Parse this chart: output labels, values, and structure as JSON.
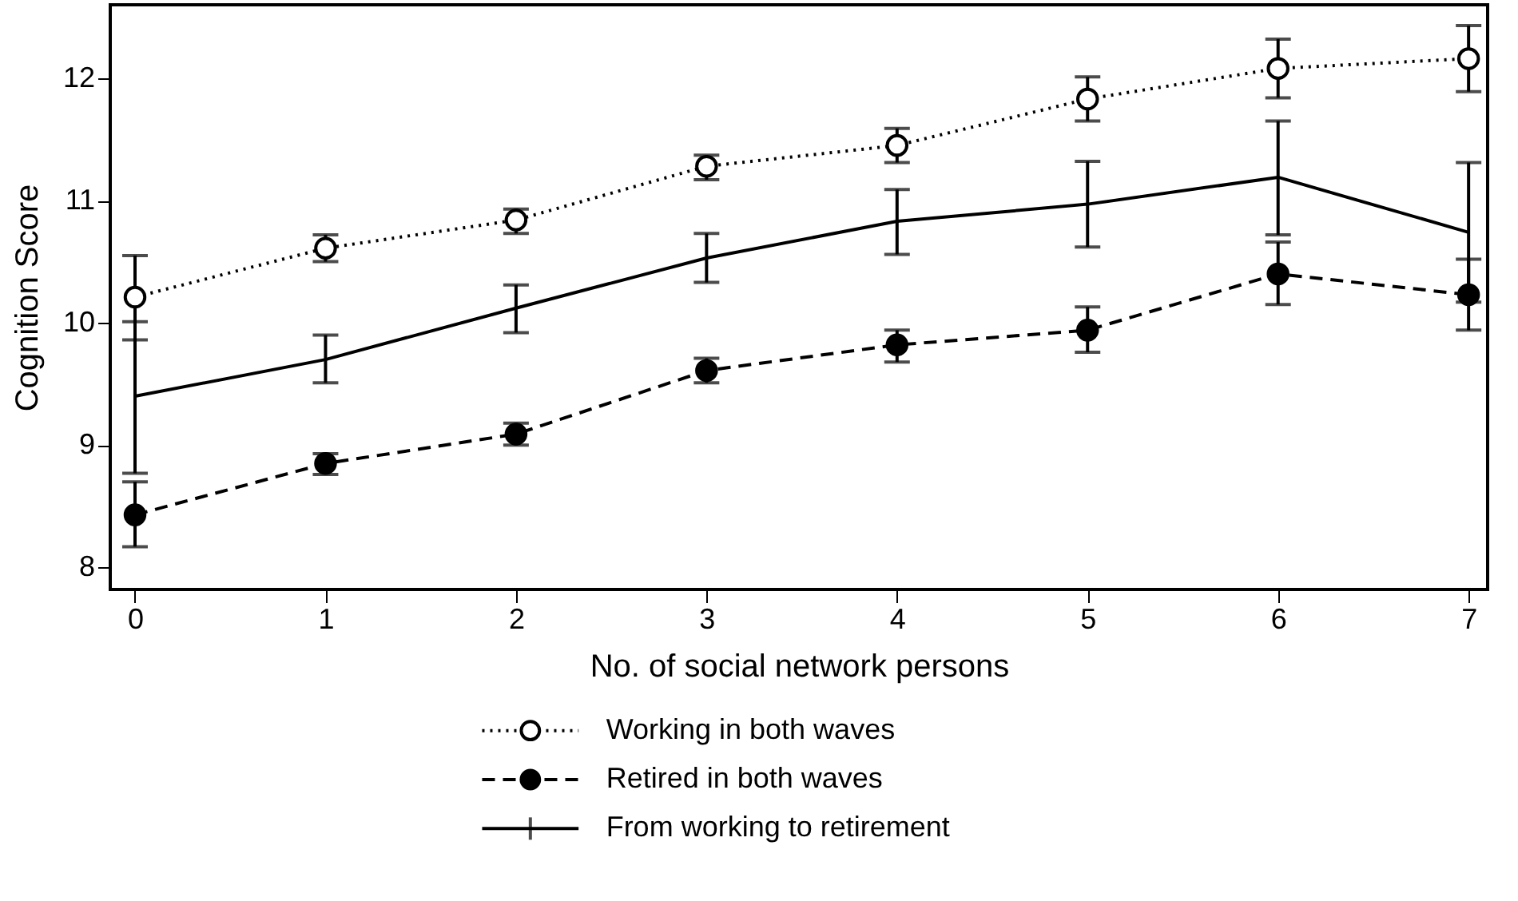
{
  "chart_data": {
    "type": "line",
    "xlabel": "No. of social network persons",
    "ylabel": "Cognition Score",
    "x": [
      0,
      1,
      2,
      3,
      4,
      5,
      6,
      7
    ],
    "xlim": [
      -0.13,
      7.1
    ],
    "xticks": [
      0,
      1,
      2,
      3,
      4,
      5,
      6,
      7
    ],
    "ylim": [
      7.82,
      12.6
    ],
    "yticks": [
      8,
      9,
      10,
      11,
      12
    ],
    "grid": false,
    "legend": "bottom",
    "series": [
      {
        "name": "Working in both waves",
        "color": "#000000",
        "line_style": "dotted",
        "marker": "circle",
        "values": [
          10.21,
          10.61,
          10.84,
          11.28,
          11.45,
          11.83,
          12.08,
          12.16
        ],
        "errors": [
          [
            9.86,
            10.55
          ],
          [
            10.5,
            10.72
          ],
          [
            10.73,
            10.93
          ],
          [
            11.17,
            11.37
          ],
          [
            11.31,
            11.59
          ],
          [
            11.65,
            12.01
          ],
          [
            11.84,
            12.32
          ],
          [
            11.89,
            12.43
          ]
        ]
      },
      {
        "name": "Retired in both waves",
        "color": "#000000",
        "line_style": "dashed",
        "marker": "circle",
        "values": [
          8.43,
          8.85,
          9.09,
          9.61,
          9.82,
          9.94,
          10.4,
          10.23
        ],
        "errors": [
          [
            8.17,
            8.7
          ],
          [
            8.76,
            8.93
          ],
          [
            9.0,
            9.18
          ],
          [
            9.51,
            9.71
          ],
          [
            9.68,
            9.94
          ],
          [
            9.76,
            10.13
          ],
          [
            10.15,
            10.66
          ],
          [
            9.94,
            10.52
          ]
        ]
      },
      {
        "name": "From working to retirement",
        "color": "#000000",
        "line_style": "solid",
        "marker": "none",
        "values": [
          9.4,
          9.7,
          10.12,
          10.53,
          10.83,
          10.97,
          11.19,
          10.74
        ],
        "errors": [
          [
            8.77,
            10.01
          ],
          [
            9.51,
            9.9
          ],
          [
            9.92,
            10.31
          ],
          [
            10.33,
            10.73
          ],
          [
            10.56,
            11.09
          ],
          [
            10.62,
            11.32
          ],
          [
            10.72,
            11.65
          ],
          [
            10.17,
            11.31
          ]
        ]
      }
    ]
  }
}
